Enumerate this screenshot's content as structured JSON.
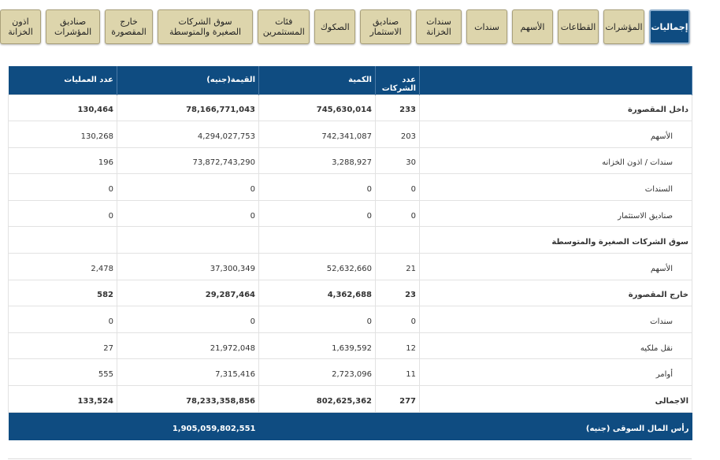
{
  "tabs": [
    "إجماليات",
    "المؤشرات",
    "القطاعات",
    "الأسهم",
    "سندات",
    "سندات الخزانة",
    "صناديق الاستثمار",
    "الصكوك",
    "فئات المستثمرين",
    "سوق الشركات الصغيرة والمتوسطة",
    "خارج المقصورة",
    "صناديق المؤشرات",
    "اذون الخزانة"
  ],
  "table": {
    "header": [
      "",
      "عدد الشركات",
      "الكمية",
      "القيمة(جنيه)",
      "عدد العمليات"
    ],
    "rows": [
      {
        "label": "داخل المقصورة",
        "bold": true,
        "cells": [
          "233",
          "745,630,014",
          "78,166,771,043",
          "130,464"
        ]
      },
      {
        "label": "الأسهم",
        "indent": true,
        "cells": [
          "203",
          "742,341,087",
          "4,294,027,753",
          "130,268"
        ]
      },
      {
        "label": "سندات / اذون الخزانه",
        "indent": true,
        "cells": [
          "30",
          "3,288,927",
          "73,872,743,290",
          "196"
        ]
      },
      {
        "label": "السندات",
        "indent": true,
        "cells": [
          "0",
          "0",
          "0",
          "0"
        ]
      },
      {
        "label": "صناديق الاستثمار",
        "indent": true,
        "cells": [
          "0",
          "0",
          "0",
          "0"
        ]
      },
      {
        "label": "سوق الشركات الصغيرة والمتوسطة",
        "bold": true
      },
      {
        "label": "الأسهم",
        "indent": true,
        "cells": [
          "21",
          "52,632,660",
          "37,300,349",
          "2,478"
        ]
      },
      {
        "label": "خارج المقصورة",
        "bold": true,
        "cells": [
          "23",
          "4,362,688",
          "29,287,464",
          "582"
        ]
      },
      {
        "label": "سندات",
        "indent": true,
        "cells": [
          "0",
          "0",
          "0",
          "0"
        ]
      },
      {
        "label": "نقل ملكيه",
        "indent": true,
        "cells": [
          "12",
          "1,639,592",
          "21,972,048",
          "27"
        ]
      },
      {
        "label": "أوامر",
        "indent": true,
        "cells": [
          "11",
          "2,723,096",
          "7,315,416",
          "555"
        ]
      },
      {
        "label": "الاجمالى",
        "bold": true,
        "cells": [
          "277",
          "802,625,362",
          "78,233,358,856",
          "133,524"
        ]
      }
    ],
    "footer": {
      "label": "رأس المال السوقى (جنيه)",
      "value": "1,905,059,802,551"
    }
  }
}
